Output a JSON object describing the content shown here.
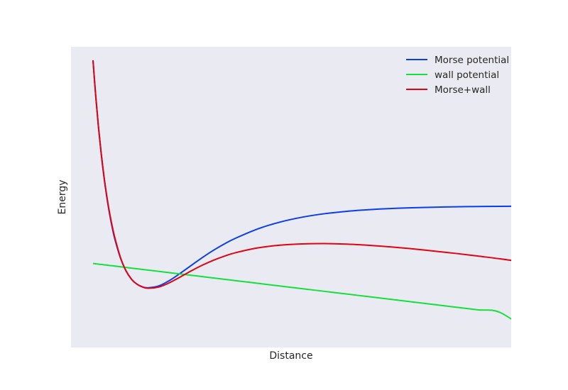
{
  "chart_data": {
    "type": "line",
    "title": "",
    "xlabel": "Distance",
    "ylabel": "Energy",
    "show_ticks": false,
    "grid": false,
    "background": "#eaeaf2",
    "legend_position": "top-right",
    "xlim": [
      0.5,
      4.5
    ],
    "ylim": [
      -1.65,
      1.75
    ],
    "x": [
      0.7,
      0.725,
      0.75,
      0.775,
      0.8,
      0.825,
      0.85,
      0.875,
      0.9,
      0.95,
      1.0,
      1.05,
      1.1,
      1.15,
      1.2,
      1.3,
      1.4,
      1.5,
      1.6,
      1.7,
      1.8,
      1.9,
      2.0,
      2.2,
      2.4,
      2.6,
      2.8,
      3.0,
      3.2,
      3.4,
      3.6,
      3.8,
      4.0,
      4.2,
      4.4,
      4.7
    ],
    "series": [
      {
        "name": "Morse potential",
        "color": "#0a3ee8",
        "values": [
          1.597,
          1.187,
          0.835,
          0.533,
          0.273,
          0.052,
          -0.137,
          -0.297,
          -0.432,
          -0.641,
          -0.784,
          -0.878,
          -0.935,
          -0.965,
          -0.975,
          -0.953,
          -0.889,
          -0.805,
          -0.716,
          -0.628,
          -0.547,
          -0.475,
          -0.412,
          -0.308,
          -0.232,
          -0.177,
          -0.138,
          -0.111,
          -0.092,
          -0.079,
          -0.07,
          -0.064,
          -0.059,
          -0.056,
          -0.054,
          -0.052
        ]
      },
      {
        "name": "wall potential",
        "color": "#14e03c",
        "values": [
          -0.7,
          -0.704,
          -0.708,
          -0.711,
          -0.715,
          -0.719,
          -0.723,
          -0.726,
          -0.73,
          -0.738,
          -0.745,
          -0.753,
          -0.76,
          -0.768,
          -0.775,
          -0.79,
          -0.805,
          -0.82,
          -0.835,
          -0.85,
          -0.865,
          -0.88,
          -0.895,
          -0.925,
          -0.955,
          -0.985,
          -1.015,
          -1.045,
          -1.075,
          -1.105,
          -1.135,
          -1.165,
          -1.195,
          -1.225,
          -1.255,
          -1.5
        ]
      },
      {
        "name": "Morse+wall",
        "color": "#e00412",
        "values": [
          1.597,
          1.189,
          0.839,
          0.54,
          0.283,
          0.064,
          -0.123,
          -0.282,
          -0.417,
          -0.634,
          -0.784,
          -0.879,
          -0.935,
          -0.967,
          -0.98,
          -0.966,
          -0.915,
          -0.848,
          -0.779,
          -0.716,
          -0.661,
          -0.615,
          -0.577,
          -0.523,
          -0.493,
          -0.479,
          -0.475,
          -0.481,
          -0.494,
          -0.512,
          -0.534,
          -0.56,
          -0.587,
          -0.617,
          -0.648,
          -0.7
        ]
      }
    ]
  }
}
